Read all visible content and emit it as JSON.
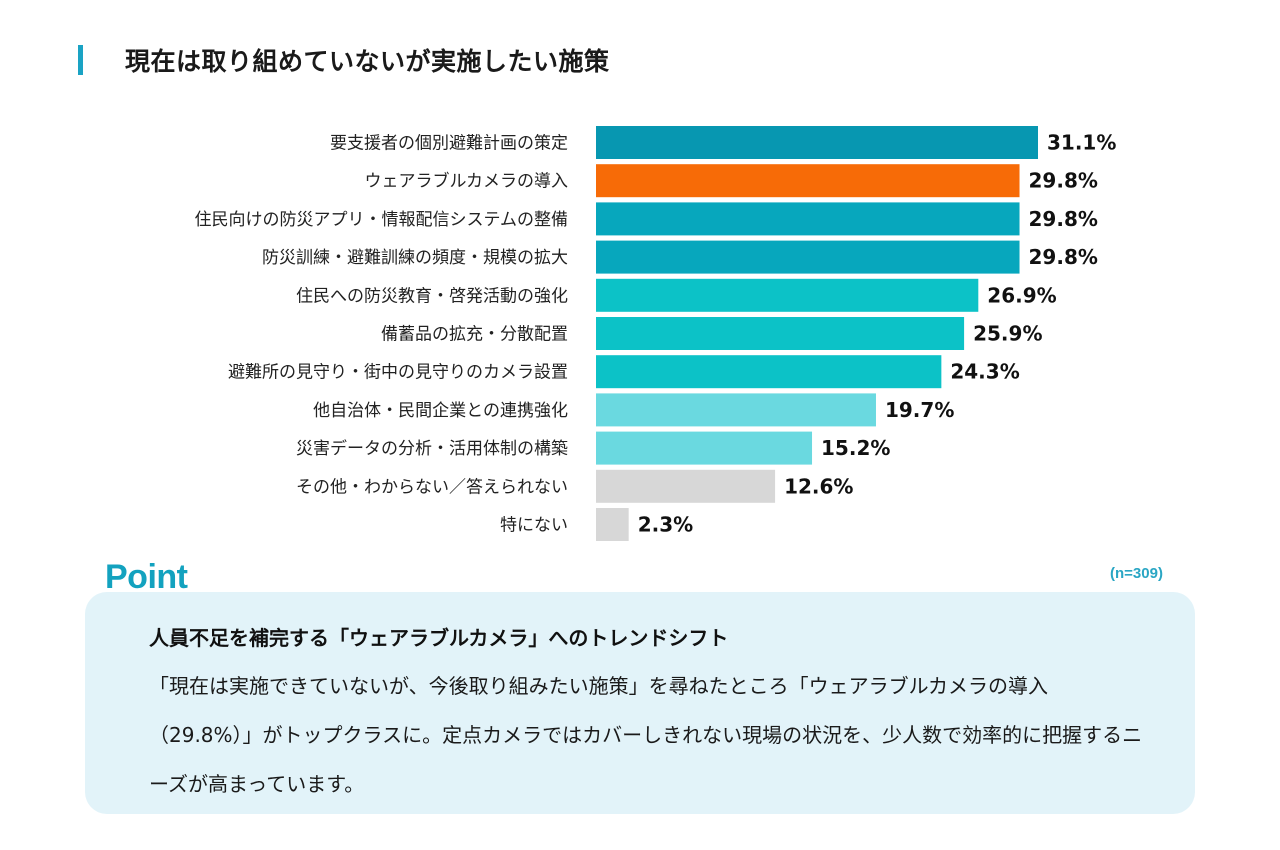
{
  "title": "現在は取り組めていないが実施したい施策",
  "chart_data": {
    "type": "bar",
    "orientation": "horizontal",
    "title": "現在は取り組めていないが実施したい施策",
    "unit": "%",
    "xlim": [
      0,
      31.1
    ],
    "categories": [
      "要支援者の個別避難計画の策定",
      "ウェアラブルカメラの導入",
      "住民向けの防災アプリ・情報配信システムの整備",
      "防災訓練・避難訓練の頻度・規模の拡大",
      "住民への防災教育・啓発活動の強化",
      "備蓄品の拡充・分散配置",
      "避難所の見守り・街中の見守りのカメラ設置",
      "他自治体・民間企業との連携強化",
      "災害データの分析・活用体制の構築",
      "その他・わからない／答えられない",
      "特にない"
    ],
    "values": [
      31.1,
      29.8,
      29.8,
      29.8,
      26.9,
      25.9,
      24.3,
      19.7,
      15.2,
      12.6,
      2.3
    ],
    "value_labels": [
      "31.1%",
      "29.8%",
      "29.8%",
      "29.8%",
      "26.9%",
      "25.9%",
      "24.3%",
      "19.7%",
      "15.2%",
      "12.6%",
      "2.3%"
    ],
    "colors": [
      "#0797b1",
      "#f76b07",
      "#07a7bd",
      "#07a7bd",
      "#0cc2c7",
      "#0cc2c7",
      "#0cc2c7",
      "#6ad9e0",
      "#6ad9e0",
      "#d7d7d7",
      "#d7d7d7"
    ],
    "sample_note": "(n=309)"
  },
  "point": {
    "label": "Point",
    "heading": "人員不足を補完する「ウェアラブルカメラ」へのトレンドシフト",
    "body": "「現在は実施できていないが、今後取り組みたい施策」を尋ねたところ「ウェアラブルカメラの導入（29.8%）」がトップクラスに。定点カメラではカバーしきれない現場の状況を、少人数で効率的に把握するニーズが高まっています。"
  }
}
